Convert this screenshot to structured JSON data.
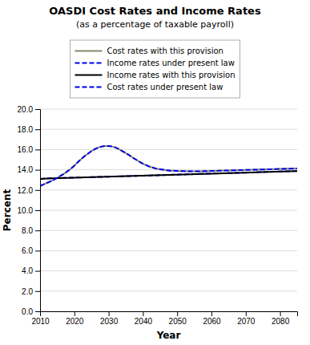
{
  "chart_data": {
    "type": "line",
    "title": "OASDI Cost Rates and Income Rates",
    "subtitle": "(as a percentage of taxable payroll)",
    "x_label": "Year",
    "y_label": "Percent",
    "xlim": [
      2010,
      2085
    ],
    "ylim": [
      0.0,
      20.0
    ],
    "xticks": [
      2010,
      2020,
      2030,
      2040,
      2050,
      2060,
      2070,
      2080
    ],
    "yticks": [
      {
        "value": 0.0,
        "label": "0.0"
      },
      {
        "value": 2.0,
        "label": "2.0"
      },
      {
        "value": 4.0,
        "label": "4.0"
      },
      {
        "value": 6.0,
        "label": "6.0"
      },
      {
        "value": 8.0,
        "label": "8.0"
      },
      {
        "value": 10.0,
        "label": "10.0"
      },
      {
        "value": 12.0,
        "label": "12.0"
      },
      {
        "value": 14.0,
        "label": "14.0"
      },
      {
        "value": 16.0,
        "label": "16.0"
      },
      {
        "value": 18.0,
        "label": "18.0"
      },
      {
        "value": 20.0,
        "label": "20.0"
      }
    ],
    "grid": true,
    "legend": "top",
    "x": [
      2010,
      2011,
      2012,
      2013,
      2014,
      2015,
      2016,
      2017,
      2018,
      2019,
      2020,
      2021,
      2022,
      2023,
      2024,
      2025,
      2026,
      2027,
      2028,
      2029,
      2030,
      2031,
      2032,
      2033,
      2034,
      2035,
      2036,
      2037,
      2038,
      2039,
      2040,
      2041,
      2042,
      2043,
      2044,
      2045,
      2046,
      2047,
      2048,
      2049,
      2050,
      2051,
      2052,
      2053,
      2054,
      2055,
      2056,
      2057,
      2058,
      2059,
      2060,
      2061,
      2062,
      2063,
      2064,
      2065,
      2066,
      2067,
      2068,
      2069,
      2070,
      2071,
      2072,
      2073,
      2074,
      2075,
      2076,
      2077,
      2078,
      2079,
      2080,
      2081,
      2082,
      2083,
      2084,
      2085
    ],
    "series": [
      {
        "name": "Cost rates with this provision",
        "color": "#888870",
        "line_style": "solid",
        "values": [
          12.4,
          12.55,
          12.7,
          12.85,
          13.0,
          13.2,
          13.4,
          13.6,
          13.85,
          14.1,
          14.4,
          14.75,
          15.05,
          15.35,
          15.6,
          15.85,
          16.05,
          16.2,
          16.3,
          16.35,
          16.35,
          16.3,
          16.2,
          16.05,
          15.85,
          15.65,
          15.45,
          15.2,
          15.0,
          14.8,
          14.6,
          14.45,
          14.3,
          14.2,
          14.1,
          14.05,
          14.0,
          13.95,
          13.9,
          13.9,
          13.88,
          13.87,
          13.86,
          13.85,
          13.85,
          13.85,
          13.85,
          13.85,
          13.86,
          13.87,
          13.88,
          13.89,
          13.9,
          13.91,
          13.92,
          13.93,
          13.94,
          13.95,
          13.96,
          13.97,
          13.98,
          13.99,
          14.0,
          14.01,
          14.02,
          14.03,
          14.04,
          14.05,
          14.06,
          14.07,
          14.08,
          14.09,
          14.1,
          14.11,
          14.12,
          14.13
        ]
      },
      {
        "name": "Income rates under present law",
        "color": "#0000EE",
        "line_style": "dashed",
        "values": [
          13.1,
          13.12,
          13.14,
          13.15,
          13.16,
          13.17,
          13.18,
          13.19,
          13.2,
          13.21,
          13.22,
          13.23,
          13.24,
          13.25,
          13.26,
          13.27,
          13.28,
          13.29,
          13.3,
          13.31,
          13.32,
          13.33,
          13.34,
          13.35,
          13.36,
          13.37,
          13.38,
          13.39,
          13.4,
          13.41,
          13.42,
          13.43,
          13.44,
          13.45,
          13.46,
          13.47,
          13.48,
          13.49,
          13.5,
          13.51,
          13.52,
          13.53,
          13.54,
          13.55,
          13.56,
          13.57,
          13.58,
          13.59,
          13.6,
          13.61,
          13.62,
          13.63,
          13.64,
          13.65,
          13.66,
          13.67,
          13.68,
          13.69,
          13.7,
          13.71,
          13.72,
          13.73,
          13.74,
          13.75,
          13.76,
          13.77,
          13.78,
          13.79,
          13.8,
          13.81,
          13.82,
          13.83,
          13.84,
          13.85,
          13.86,
          13.87
        ]
      },
      {
        "name": "Income rates with this provision",
        "color": "#000000",
        "line_style": "solid",
        "values": [
          13.1,
          13.12,
          13.14,
          13.15,
          13.16,
          13.17,
          13.18,
          13.19,
          13.2,
          13.21,
          13.22,
          13.23,
          13.24,
          13.25,
          13.26,
          13.27,
          13.28,
          13.29,
          13.3,
          13.31,
          13.32,
          13.33,
          13.34,
          13.35,
          13.36,
          13.37,
          13.38,
          13.39,
          13.4,
          13.41,
          13.42,
          13.43,
          13.44,
          13.45,
          13.46,
          13.47,
          13.48,
          13.49,
          13.5,
          13.51,
          13.52,
          13.53,
          13.54,
          13.55,
          13.56,
          13.57,
          13.58,
          13.59,
          13.6,
          13.61,
          13.62,
          13.63,
          13.64,
          13.65,
          13.66,
          13.67,
          13.68,
          13.69,
          13.7,
          13.71,
          13.72,
          13.73,
          13.74,
          13.75,
          13.76,
          13.77,
          13.78,
          13.79,
          13.8,
          13.81,
          13.82,
          13.83,
          13.84,
          13.85,
          13.86,
          13.87
        ]
      },
      {
        "name": "Cost rates under present law",
        "color": "#0000EE",
        "line_style": "dashed",
        "values": [
          12.4,
          12.55,
          12.7,
          12.85,
          13.0,
          13.2,
          13.4,
          13.6,
          13.85,
          14.1,
          14.4,
          14.75,
          15.05,
          15.35,
          15.6,
          15.85,
          16.05,
          16.2,
          16.3,
          16.35,
          16.35,
          16.3,
          16.2,
          16.05,
          15.85,
          15.65,
          15.45,
          15.2,
          15.0,
          14.8,
          14.6,
          14.45,
          14.3,
          14.2,
          14.1,
          14.05,
          14.0,
          13.95,
          13.9,
          13.9,
          13.88,
          13.87,
          13.86,
          13.85,
          13.85,
          13.85,
          13.85,
          13.85,
          13.86,
          13.87,
          13.88,
          13.89,
          13.9,
          13.91,
          13.92,
          13.93,
          13.94,
          13.95,
          13.96,
          13.97,
          13.98,
          13.99,
          14.0,
          14.01,
          14.02,
          14.03,
          14.04,
          14.05,
          14.06,
          14.07,
          14.08,
          14.09,
          14.1,
          14.11,
          14.12,
          14.13
        ]
      }
    ]
  }
}
